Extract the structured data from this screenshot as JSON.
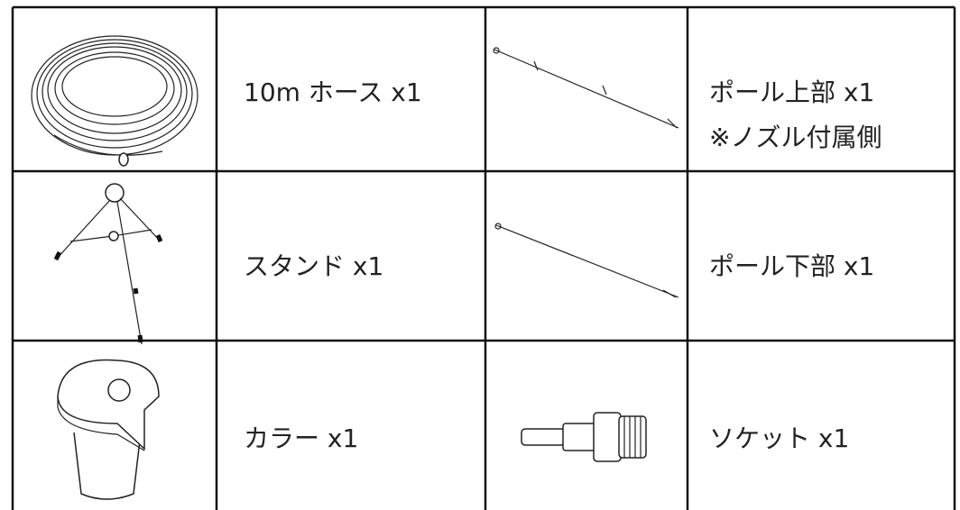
{
  "table": {
    "rows": [
      [
        {
          "lines": [
            "10m ホース x1"
          ]
        },
        {
          "lines": [
            "ポール上部 x1",
            "※ノズル付属側"
          ]
        }
      ],
      [
        {
          "lines": [
            "スタンド x1"
          ]
        },
        {
          "lines": [
            "ポール下部 x1"
          ]
        }
      ],
      [
        {
          "lines": [
            "カラー x1"
          ]
        },
        {
          "lines": [
            "ソケット x1"
          ]
        }
      ]
    ]
  }
}
